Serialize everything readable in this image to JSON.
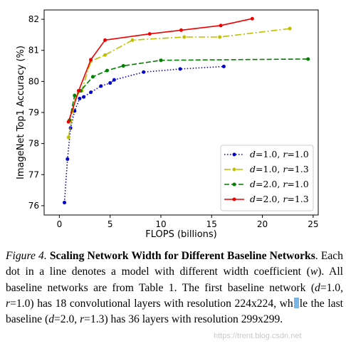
{
  "figure": {
    "chart_data": {
      "type": "line",
      "title": "",
      "xlabel": "FLOPS (billions)",
      "ylabel": "ImageNet Top1 Accuracy (%)",
      "xlim": [
        -1.5,
        25.5
      ],
      "ylim": [
        75.7,
        82.3
      ],
      "xticks": [
        0,
        5,
        10,
        15,
        20,
        25
      ],
      "yticks": [
        76,
        77,
        78,
        79,
        80,
        81,
        82
      ],
      "grid": false,
      "legend_position": "lower-right",
      "series": [
        {
          "label_d": "1.0",
          "label_r": "1.0",
          "color": "#0000cc",
          "dash": "1.5,2.5",
          "marker": "circle",
          "x": [
            0.5,
            0.8,
            1.1,
            1.5,
            2.0,
            2.4,
            3.1,
            4.1,
            5.0,
            5.4,
            8.3,
            11.9,
            16.2
          ],
          "y": [
            76.1,
            77.5,
            78.5,
            79.05,
            79.45,
            79.5,
            79.65,
            79.85,
            79.95,
            80.05,
            80.3,
            80.4,
            80.48
          ]
        },
        {
          "label_d": "1.0",
          "label_r": "1.3",
          "color": "#bfbf00",
          "dash": "9,3,2,3",
          "marker": "circle",
          "x": [
            0.9,
            1.6,
            2.2,
            3.1,
            4.5,
            7.2,
            12.3,
            15.8,
            22.7
          ],
          "y": [
            78.2,
            79.5,
            79.7,
            80.65,
            80.85,
            81.33,
            81.43,
            81.43,
            81.7
          ]
        },
        {
          "label_d": "2.0",
          "label_r": "1.0",
          "color": "#008000",
          "dash": "7,3",
          "marker": "circle",
          "x": [
            1.0,
            1.5,
            2.1,
            3.3,
            4.7,
            6.3,
            10.0,
            24.5
          ],
          "y": [
            78.75,
            79.55,
            79.7,
            80.15,
            80.35,
            80.5,
            80.68,
            80.72
          ]
        },
        {
          "label_d": "2.0",
          "label_r": "1.3",
          "color": "#ee0000",
          "dash": "",
          "marker": "circle",
          "x": [
            0.9,
            1.9,
            3.1,
            4.5,
            8.9,
            12.0,
            15.9,
            19.0
          ],
          "y": [
            78.7,
            79.7,
            80.7,
            81.33,
            81.53,
            81.65,
            81.8,
            82.02
          ]
        }
      ]
    },
    "legend_prefix_d": "d",
    "legend_prefix_r": "r",
    "legend_eq": "=",
    "legend_sep": ", "
  },
  "caption": {
    "label": "Figure 4.",
    "title": "Scaling Network Width for Different Baseline Networks",
    "body_1": ". Each dot in a line denotes a model with different width coefficient (",
    "w": "w",
    "body_2": "). All baseline networks are from Table 1. The first baseline network (",
    "d1": "d",
    "body_3": "=1.0, ",
    "r1": "r",
    "body_4": "=1.0) has 18 convolutional layers with resolution 224x224, wh",
    "body_5": "le the last baseline (",
    "d2": "d",
    "body_6": "=2.0, ",
    "r2": "r",
    "body_7": "=1.3) has 36 layers with resolution 299x299."
  },
  "watermark": "https://trent.blog.csdn.net"
}
